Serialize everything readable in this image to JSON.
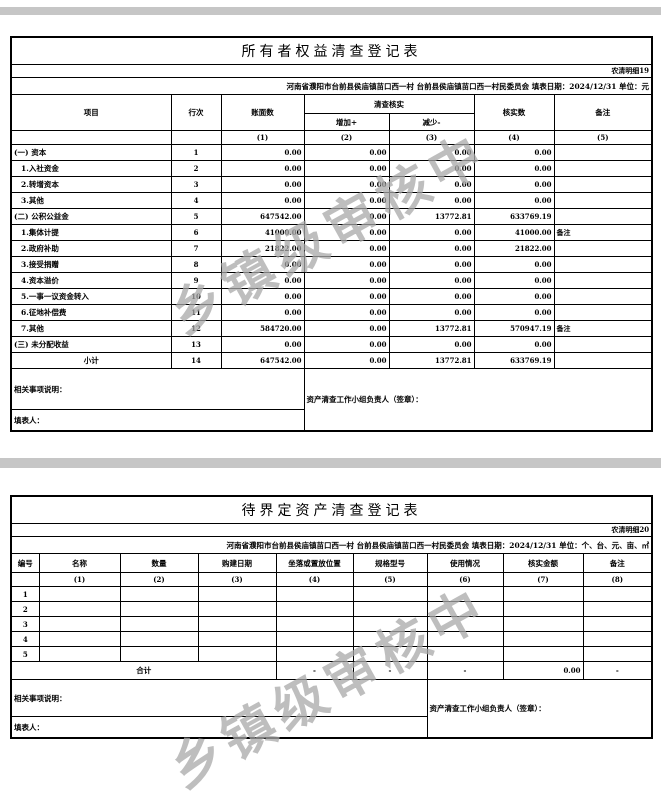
{
  "page": {
    "watermark_text": "乡镇级审核中"
  },
  "table1": {
    "title": "所有者权益清查登记表",
    "form_code": "农清明细19",
    "info_line": "河南省濮阳市台前县侯庙镇苗口西一村  台前县侯庙镇苗口西一村民委员会  填表日期：2024/12/31  单位：元",
    "headers": {
      "item": "项目",
      "line_no": "行次",
      "book_value": "账面数",
      "check": "清查核实",
      "increase": "增加+",
      "decrease": "减少-",
      "verified": "核实数",
      "remark": "备注"
    },
    "col_numbers": [
      "(1)",
      "(2)",
      "(3)",
      "(4)",
      "(5)"
    ],
    "rows": [
      {
        "item": "(一) 资本",
        "style": "",
        "no": "1",
        "vals": [
          "0.00",
          "0.00",
          "0.00",
          "0.00"
        ],
        "remark": ""
      },
      {
        "item": "1.入社资金",
        "style": "indent",
        "no": "2",
        "vals": [
          "0.00",
          "0.00",
          "0.00",
          "0.00"
        ],
        "remark": ""
      },
      {
        "item": "2.转增资本",
        "style": "indent",
        "no": "3",
        "vals": [
          "0.00",
          "0.00",
          "0.00",
          "0.00"
        ],
        "remark": ""
      },
      {
        "item": "3.其他",
        "style": "indent",
        "no": "4",
        "vals": [
          "0.00",
          "0.00",
          "0.00",
          "0.00"
        ],
        "remark": ""
      },
      {
        "item": "(二) 公积公益金",
        "style": "",
        "no": "5",
        "vals": [
          "647542.00",
          "0.00",
          "13772.81",
          "633769.19"
        ],
        "remark": ""
      },
      {
        "item": "1.集体计提",
        "style": "indent",
        "no": "6",
        "vals": [
          "41000.00",
          "0.00",
          "0.00",
          "41000.00"
        ],
        "remark": "备注"
      },
      {
        "item": "2.政府补助",
        "style": "indent",
        "no": "7",
        "vals": [
          "21822.00",
          "0.00",
          "0.00",
          "21822.00"
        ],
        "remark": ""
      },
      {
        "item": "3.接受捐赠",
        "style": "indent",
        "no": "8",
        "vals": [
          "0.00",
          "0.00",
          "0.00",
          "0.00"
        ],
        "remark": ""
      },
      {
        "item": "4.资本溢价",
        "style": "indent",
        "no": "9",
        "vals": [
          "0.00",
          "0.00",
          "0.00",
          "0.00"
        ],
        "remark": ""
      },
      {
        "item": "5.一事一议资金转入",
        "style": "indent",
        "no": "10",
        "vals": [
          "0.00",
          "0.00",
          "0.00",
          "0.00"
        ],
        "remark": ""
      },
      {
        "item": "6.征地补偿费",
        "style": "indent",
        "no": "11",
        "vals": [
          "0.00",
          "0.00",
          "0.00",
          "0.00"
        ],
        "remark": ""
      },
      {
        "item": "7.其他",
        "style": "indent",
        "no": "12",
        "vals": [
          "584720.00",
          "0.00",
          "13772.81",
          "570947.19"
        ],
        "remark": "备注"
      },
      {
        "item": "(三) 未分配收益",
        "style": "",
        "no": "13",
        "vals": [
          "0.00",
          "0.00",
          "0.00",
          "0.00"
        ],
        "remark": ""
      },
      {
        "item": "小计",
        "style": "center",
        "no": "14",
        "vals": [
          "647542.00",
          "0.00",
          "13772.81",
          "633769.19"
        ],
        "remark": ""
      }
    ],
    "footer": {
      "notes_label": "相关事项说明：",
      "signer_label": "资产清查工作小组负责人（签章）：",
      "preparer_label": "填表人："
    }
  },
  "table2": {
    "title": "待界定资产清查登记表",
    "form_code": "农清明细20",
    "info_line": "河南省濮阳市台前县侯庙镇苗口西一村  台前县侯庙镇苗口西一村民委员会  填表日期：2024/12/31  单位：个、台、元、亩、㎡",
    "headers": [
      "编号",
      "名称",
      "数量",
      "购建日期",
      "坐落或置放位置",
      "规格型号",
      "使用情况",
      "核实金额",
      "备注"
    ],
    "col_numbers": [
      "(1)",
      "(2)",
      "(3)",
      "(4)",
      "(5)",
      "(6)",
      "(7)",
      "(8)"
    ],
    "rows": [
      {
        "no": "1",
        "cells": [
          "",
          "",
          "",
          "",
          "",
          "",
          "",
          ""
        ]
      },
      {
        "no": "2",
        "cells": [
          "",
          "",
          "",
          "",
          "",
          "",
          "",
          ""
        ]
      },
      {
        "no": "3",
        "cells": [
          "",
          "",
          "",
          "",
          "",
          "",
          "",
          ""
        ]
      },
      {
        "no": "4",
        "cells": [
          "",
          "",
          "",
          "",
          "",
          "",
          "",
          ""
        ]
      },
      {
        "no": "5",
        "cells": [
          "",
          "",
          "",
          "",
          "",
          "",
          "",
          ""
        ]
      }
    ],
    "total": {
      "label": "合计",
      "values": [
        "-",
        "-",
        "-",
        "0.00",
        "-"
      ]
    },
    "footer": {
      "notes_label": "相关事项说明：",
      "signer_label": "资产清查工作小组负责人（签章）：",
      "preparer_label": "填表人："
    }
  }
}
